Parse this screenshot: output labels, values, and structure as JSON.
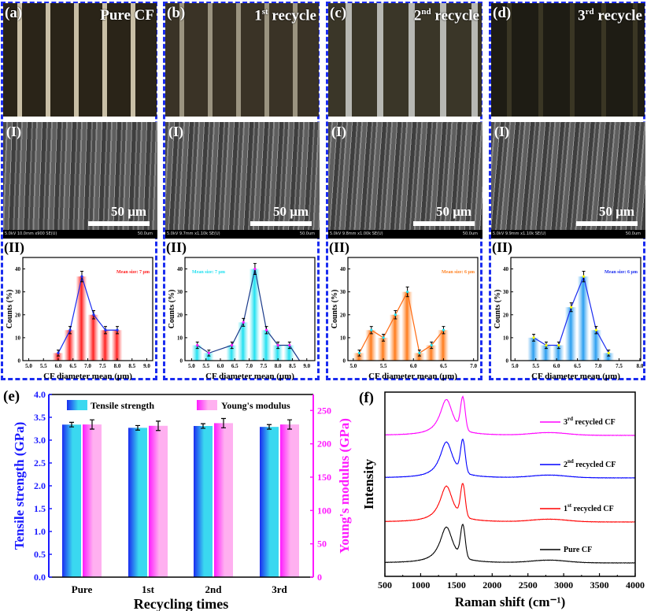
{
  "panels": [
    {
      "letter": "(a)",
      "title": {
        "num": "Pure CF",
        "sup": "",
        "text": ""
      },
      "sem_label": "(I)",
      "scale": "50 μm",
      "sem_info": "5.0kV 10.0mm x900 SE(U)",
      "sem_scale": "50.0um",
      "hist_label": "(II)"
    },
    {
      "letter": "(b)",
      "title": {
        "num": "1",
        "sup": "st",
        "text": " recycle"
      },
      "sem_label": "(I)",
      "scale": "50 μm",
      "sem_info": "5.0kV 9.7mm x1.10k SE(U)",
      "sem_scale": "50.0um",
      "hist_label": "(II)"
    },
    {
      "letter": "(c)",
      "title": {
        "num": "2",
        "sup": "nd",
        "text": " recycle"
      },
      "sem_label": "(I)",
      "scale": "50 μm",
      "sem_info": "5.0kV 9.8mm x1.00k SE(U)",
      "sem_scale": "50.0um",
      "hist_label": "(II)"
    },
    {
      "letter": "(d)",
      "title": {
        "num": "3",
        "sup": "rd",
        "text": " recycle"
      },
      "sem_label": "(I)",
      "scale": "50 μm",
      "sem_info": "5.0kV 9.9mm x1.10k SE(U)",
      "sem_scale": "50.0um",
      "hist_label": "(II)"
    }
  ],
  "colors": {
    "frame": "#1a2cf0",
    "tensile": "#3ad8f0",
    "modulus": "#ff5ce0",
    "left_axis": "#1a1aff",
    "right_axis": "#ff1aff"
  },
  "chart_data": [
    {
      "type": "bar",
      "panel": "(a)(II)",
      "xlabel": "CF diameter mean (μm)",
      "ylabel": "Counts (%)",
      "annotation": "Mean size: 7 μm",
      "annotation_color": "#ff1a1a",
      "bar_color": "#ff2020",
      "line_color": "#1a2cf0",
      "marker_color": "#1a2cf0",
      "xlim": [
        4.8,
        9.2
      ],
      "ylim": [
        0,
        45
      ],
      "xticks": [
        5.0,
        5.5,
        6.0,
        6.5,
        7.0,
        7.5,
        8.0,
        8.5,
        9.0
      ],
      "yticks": [
        0,
        10,
        20,
        30,
        40
      ],
      "bar_width": 0.4,
      "x": [
        6.0,
        6.4,
        6.8,
        7.2,
        7.6,
        8.0
      ],
      "values": [
        3.3,
        13.3,
        36.7,
        20.0,
        13.3,
        13.3
      ]
    },
    {
      "type": "bar",
      "panel": "(b)(II)",
      "xlabel": "CF diameter mean (μm)",
      "ylabel": "Counts (%)",
      "annotation": "Mean size: 7 μm",
      "annotation_color": "#22e0f0",
      "bar_color": "#22e0f0",
      "line_color": "#1a3a8a",
      "marker_color": "#ff1aff",
      "xlim": [
        4.77,
        9.28
      ],
      "ylim": [
        0,
        45
      ],
      "xticks": [
        5.0,
        5.5,
        6.0,
        6.5,
        7.0,
        7.5,
        8.0,
        8.5,
        9.0
      ],
      "yticks": [
        0,
        10,
        20,
        30,
        40
      ],
      "bar_width": 0.4,
      "x": [
        5.2,
        5.6,
        6.4,
        6.8,
        7.2,
        7.6,
        8.0,
        8.4
      ],
      "values": [
        6.7,
        3.3,
        6.7,
        16.7,
        40.0,
        13.3,
        6.7,
        6.7
      ],
      "line_end": [
        8.75,
        0
      ]
    },
    {
      "type": "bar",
      "panel": "(c)(II)",
      "xlabel": "CF diameter mean (μm)",
      "ylabel": "Counts (%)",
      "annotation": "Mean size: 6 μm",
      "annotation_color": "#ff8020",
      "bar_color": "#ff7a1a",
      "line_color": "#ff6a10",
      "marker_color": "#22e0f0",
      "xlim": [
        4.91,
        7.07
      ],
      "ylim": [
        0,
        45
      ],
      "xticks": [
        5.0,
        5.5,
        6.0,
        6.5,
        7.0
      ],
      "yticks": [
        0,
        10,
        20,
        30,
        40
      ],
      "bar_width": 0.2,
      "x": [
        5.1,
        5.3,
        5.5,
        5.7,
        5.9,
        6.1,
        6.3,
        6.5
      ],
      "values": [
        3.3,
        13.3,
        10.0,
        20.0,
        30.0,
        3.3,
        6.7,
        13.3
      ]
    },
    {
      "type": "bar",
      "panel": "(d)(II)",
      "xlabel": "CF diameter mean (μm)",
      "ylabel": "Counts (%)",
      "annotation": "Mean size: 6 μm",
      "annotation_color": "#1a2cf0",
      "bar_color": "#2a9ef0",
      "line_color": "#1a2cf0",
      "marker_color": "#ffff00",
      "xlim": [
        4.9,
        8.02
      ],
      "ylim": [
        0,
        45
      ],
      "xticks": [
        5.0,
        5.5,
        6.0,
        6.5,
        7.0,
        7.5,
        8.0
      ],
      "yticks": [
        0,
        10,
        20,
        30,
        40
      ],
      "bar_width": 0.3,
      "x": [
        5.45,
        5.75,
        6.05,
        6.35,
        6.65,
        6.95,
        7.25
      ],
      "values": [
        10.0,
        6.7,
        6.7,
        23.3,
        36.7,
        13.3,
        3.3
      ]
    },
    {
      "type": "bar",
      "panel": "(e)",
      "xlabel": "Recycling times",
      "ylabel": "Tensile strength (GPa)",
      "ylabel_right": "Young's modulus (GPa)",
      "categories": [
        "Pure",
        "1st",
        "2nd",
        "3rd"
      ],
      "ylim": [
        0,
        4.0
      ],
      "yticks": [
        0.0,
        0.5,
        1.0,
        1.5,
        2.0,
        2.5,
        3.0,
        3.5,
        4.0
      ],
      "ylim_right": [
        0,
        274
      ],
      "yticks_right": [
        0,
        50,
        100,
        150,
        200,
        250
      ],
      "legend_position": "top",
      "series": [
        {
          "name": "Tensile strength",
          "axis": "left",
          "values": [
            3.34,
            3.27,
            3.31,
            3.29
          ],
          "errors": [
            0.05,
            0.05,
            0.05,
            0.05
          ]
        },
        {
          "name": "Young's modulus",
          "axis": "right",
          "values": [
            229,
            227,
            231,
            229
          ],
          "errors": [
            7,
            7,
            7,
            7
          ]
        }
      ]
    },
    {
      "type": "line",
      "panel": "(f)",
      "xlabel": "Raman shift (cm⁻¹)",
      "ylabel": "Intensity",
      "xlim": [
        500,
        4000
      ],
      "xticks": [
        500,
        1000,
        1500,
        2000,
        2500,
        3000,
        3500,
        4000
      ],
      "peaks": {
        "D": 1360,
        "G": 1590,
        "second_order": 2800
      },
      "series": [
        {
          "name": {
            "num": "Pure CF",
            "sup": "",
            "text": ""
          },
          "color": "#000000"
        },
        {
          "name": {
            "num": "1",
            "sup": "st",
            "text": " recycled CF"
          },
          "color": "#ff0000"
        },
        {
          "name": {
            "num": "2",
            "sup": "nd",
            "text": " recycled CF"
          },
          "color": "#0000ff"
        },
        {
          "name": {
            "num": "3",
            "sup": "rd",
            "text": " recycled CF"
          },
          "color": "#ff00ff"
        }
      ]
    }
  ],
  "bottom_labels": {
    "e": "(e)",
    "f": "(f)"
  }
}
